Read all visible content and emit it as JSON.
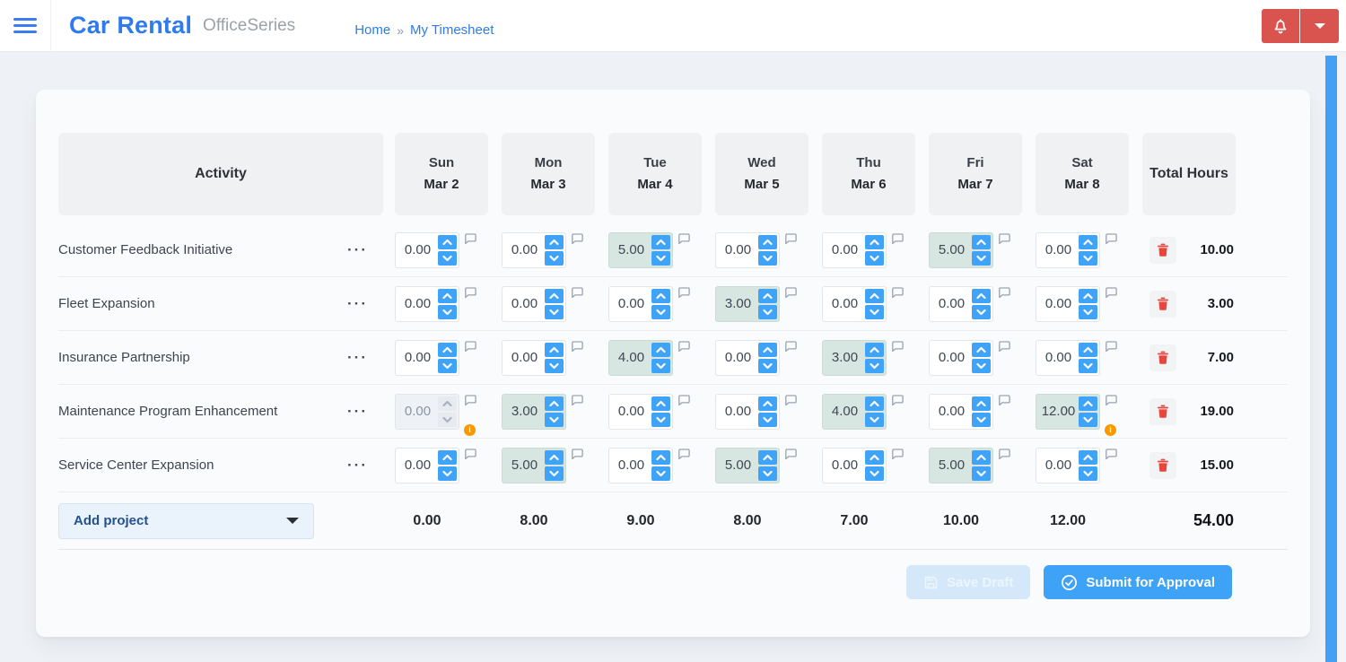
{
  "topbar": {
    "brand": "Car Rental",
    "suite": "OfficeSeries",
    "breadcrumb": {
      "home": "Home",
      "separator": "»",
      "current": "My Timesheet"
    }
  },
  "timesheet": {
    "columns": {
      "activity": "Activity",
      "total": "Total Hours"
    },
    "days": [
      {
        "name": "Sun",
        "date": "Mar 2"
      },
      {
        "name": "Mon",
        "date": "Mar 3"
      },
      {
        "name": "Tue",
        "date": "Mar 4"
      },
      {
        "name": "Wed",
        "date": "Mar 5"
      },
      {
        "name": "Thu",
        "date": "Mar 6"
      },
      {
        "name": "Fri",
        "date": "Mar 7"
      },
      {
        "name": "Sat",
        "date": "Mar 8"
      }
    ],
    "row_menu_label": "···",
    "rows": [
      {
        "activity": "Customer Feedback Initiative",
        "cells": [
          {
            "value": "0.00",
            "filled": false,
            "disabled": false,
            "info": false
          },
          {
            "value": "0.00",
            "filled": false,
            "disabled": false,
            "info": false
          },
          {
            "value": "5.00",
            "filled": true,
            "disabled": false,
            "info": false
          },
          {
            "value": "0.00",
            "filled": false,
            "disabled": false,
            "info": false
          },
          {
            "value": "0.00",
            "filled": false,
            "disabled": false,
            "info": false
          },
          {
            "value": "5.00",
            "filled": true,
            "disabled": false,
            "info": false
          },
          {
            "value": "0.00",
            "filled": false,
            "disabled": false,
            "info": false
          }
        ],
        "total": "10.00"
      },
      {
        "activity": "Fleet Expansion",
        "cells": [
          {
            "value": "0.00",
            "filled": false,
            "disabled": false,
            "info": false
          },
          {
            "value": "0.00",
            "filled": false,
            "disabled": false,
            "info": false
          },
          {
            "value": "0.00",
            "filled": false,
            "disabled": false,
            "info": false
          },
          {
            "value": "3.00",
            "filled": true,
            "disabled": false,
            "info": false
          },
          {
            "value": "0.00",
            "filled": false,
            "disabled": false,
            "info": false
          },
          {
            "value": "0.00",
            "filled": false,
            "disabled": false,
            "info": false
          },
          {
            "value": "0.00",
            "filled": false,
            "disabled": false,
            "info": false
          }
        ],
        "total": "3.00"
      },
      {
        "activity": "Insurance Partnership",
        "cells": [
          {
            "value": "0.00",
            "filled": false,
            "disabled": false,
            "info": false
          },
          {
            "value": "0.00",
            "filled": false,
            "disabled": false,
            "info": false
          },
          {
            "value": "4.00",
            "filled": true,
            "disabled": false,
            "info": false
          },
          {
            "value": "0.00",
            "filled": false,
            "disabled": false,
            "info": false
          },
          {
            "value": "3.00",
            "filled": true,
            "disabled": false,
            "info": false
          },
          {
            "value": "0.00",
            "filled": false,
            "disabled": false,
            "info": false
          },
          {
            "value": "0.00",
            "filled": false,
            "disabled": false,
            "info": false
          }
        ],
        "total": "7.00"
      },
      {
        "activity": "Maintenance Program Enhancement",
        "cells": [
          {
            "value": "0.00",
            "filled": false,
            "disabled": true,
            "info": true
          },
          {
            "value": "3.00",
            "filled": true,
            "disabled": false,
            "info": false
          },
          {
            "value": "0.00",
            "filled": false,
            "disabled": false,
            "info": false
          },
          {
            "value": "0.00",
            "filled": false,
            "disabled": false,
            "info": false
          },
          {
            "value": "4.00",
            "filled": true,
            "disabled": false,
            "info": false
          },
          {
            "value": "0.00",
            "filled": false,
            "disabled": false,
            "info": false
          },
          {
            "value": "12.00",
            "filled": true,
            "disabled": false,
            "info": true
          }
        ],
        "total": "19.00"
      },
      {
        "activity": "Service Center Expansion",
        "cells": [
          {
            "value": "0.00",
            "filled": false,
            "disabled": false,
            "info": false
          },
          {
            "value": "5.00",
            "filled": true,
            "disabled": false,
            "info": false
          },
          {
            "value": "0.00",
            "filled": false,
            "disabled": false,
            "info": false
          },
          {
            "value": "5.00",
            "filled": true,
            "disabled": false,
            "info": false
          },
          {
            "value": "0.00",
            "filled": false,
            "disabled": false,
            "info": false
          },
          {
            "value": "5.00",
            "filled": true,
            "disabled": false,
            "info": false
          },
          {
            "value": "0.00",
            "filled": false,
            "disabled": false,
            "info": false
          }
        ],
        "total": "15.00"
      }
    ],
    "footer": {
      "add_project": "Add project",
      "day_totals": [
        "0.00",
        "8.00",
        "9.00",
        "8.00",
        "7.00",
        "10.00",
        "12.00"
      ],
      "grand_total": "54.00"
    },
    "actions": {
      "save_draft": "Save Draft",
      "submit": "Submit for Approval"
    }
  },
  "colors": {
    "brand_blue": "#2e7bee",
    "spinner_blue": "#3fa3f7",
    "danger_red": "#d9534f",
    "filled_cell_teal": "#d8e6e1",
    "warning_orange": "#fb9800",
    "scrollbar_blue": "#42a1f5"
  }
}
